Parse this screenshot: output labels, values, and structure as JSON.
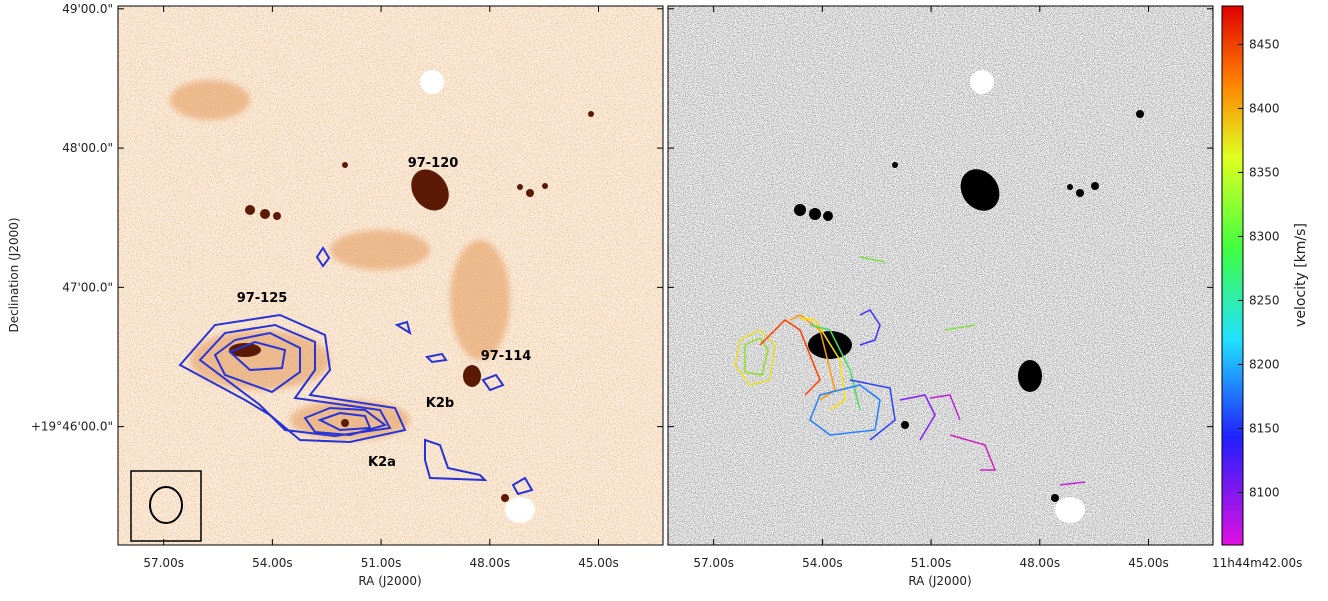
{
  "chart_data": [
    {
      "type": "image",
      "xlabel": "RA (J2000)",
      "ylabel": "Declination (J2000)",
      "xlim": [
        58.26,
        43.22
      ],
      "xticks": [
        {
          "value": 57,
          "label": "57.00s"
        },
        {
          "value": 54,
          "label": "54.00s"
        },
        {
          "value": 51,
          "label": "51.00s"
        },
        {
          "value": 48,
          "label": "48.00s"
        },
        {
          "value": 45,
          "label": "45.00s"
        },
        {
          "value": 42,
          "label": "11h44m42.00s"
        }
      ],
      "ylim": [
        45.15,
        49.02
      ],
      "yticks": [
        {
          "value": 46,
          "label": "+19°46'00.0\""
        },
        {
          "value": 47,
          "label": "47'00.0\""
        },
        {
          "value": 48,
          "label": "48'00.0\""
        },
        {
          "value": 49,
          "label": "49'00.0\""
        }
      ],
      "annotations": [
        "97-120",
        "97-125",
        "97-114",
        "K2b",
        "K2a"
      ]
    },
    {
      "type": "image",
      "xlabel": "RA (J2000)",
      "xlim": [
        58.26,
        43.22
      ],
      "xticks": [
        {
          "value": 57,
          "label": "57.00s"
        },
        {
          "value": 54,
          "label": "54.00s"
        },
        {
          "value": 51,
          "label": "51.00s"
        },
        {
          "value": 48,
          "label": "48.00s"
        },
        {
          "value": 45,
          "label": "45.00s"
        },
        {
          "value": 42,
          "label": "11h44m42.00s"
        }
      ],
      "colorbar": {
        "label": "velocity [km/s]",
        "lim": [
          8059,
          8480
        ],
        "ticks": [
          8100,
          8150,
          8200,
          8250,
          8300,
          8350,
          8400,
          8450
        ]
      }
    }
  ]
}
